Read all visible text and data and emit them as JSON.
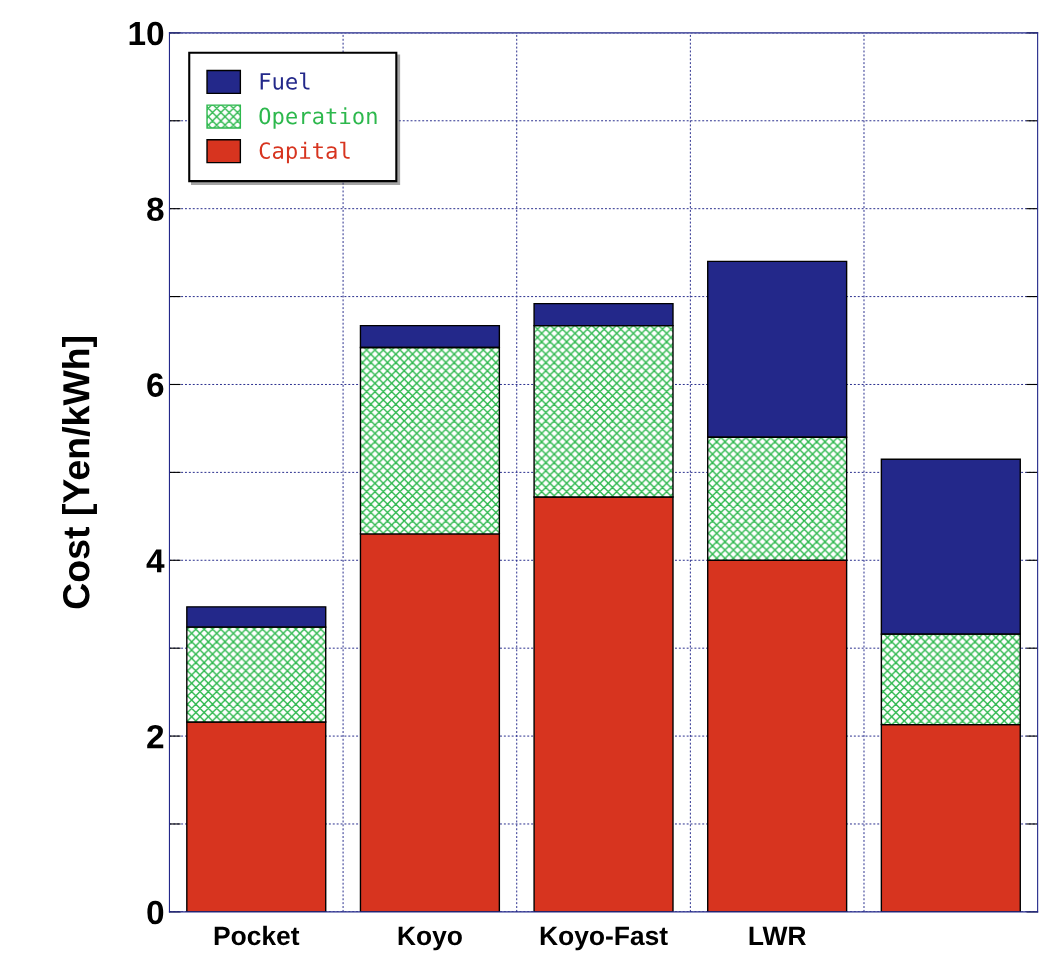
{
  "chart_data": {
    "type": "bar",
    "stacked": true,
    "ylabel": "Cost [Yen/kWh]",
    "categories": [
      "Pocket",
      "Koyo",
      "Koyo-Fast",
      "LWR",
      null
    ],
    "series": [
      {
        "name": "Capital",
        "color": "#d7341f",
        "values": [
          2.16,
          4.3,
          4.72,
          4.0,
          2.13
        ]
      },
      {
        "name": "Operation",
        "color": "#2db84d",
        "values": [
          1.08,
          2.12,
          1.95,
          1.4,
          1.03
        ]
      },
      {
        "name": "Fuel",
        "color": "#23288a",
        "values": [
          0.23,
          0.25,
          0.25,
          2.0,
          1.99
        ]
      }
    ],
    "ylim": [
      0,
      10
    ],
    "yticks": [
      0,
      {
        "value": 1,
        "label": null
      },
      2,
      {
        "value": 3,
        "label": null
      },
      4,
      {
        "value": 5,
        "label": null
      },
      6,
      {
        "value": 7,
        "label": null
      },
      8,
      {
        "value": 9,
        "label": null
      },
      10
    ],
    "grid": true,
    "legend": "top left"
  }
}
